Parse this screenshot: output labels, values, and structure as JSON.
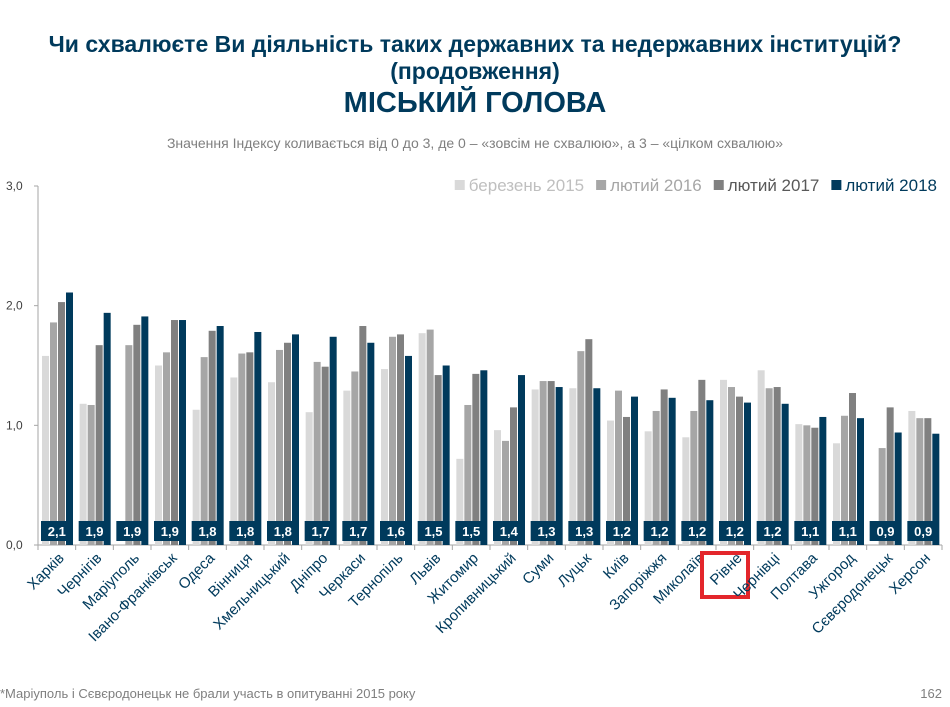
{
  "header": {
    "line1": "Чи схвалюєте Ви діяльність таких державних та недержавних інституцій?",
    "line2": "(продовження)",
    "line3": "МІСЬКИЙ ГОЛОВА",
    "subtitle": "Значення Індексу коливається від 0 до 3, де 0 – «зовсім не схвалюю», а 3 – «цілком схвалюю»"
  },
  "footer": {
    "footnote": "*Маріуполь і Сєвєродонецьк не брали участь в опитуванні 2015 року",
    "page_number": "162"
  },
  "colors": {
    "s2015": "#d9d9d9",
    "s2016": "#a6a6a6",
    "s2017": "#808080",
    "s2018": "#003a5c",
    "highlight": "#e3262b",
    "axis": "#a6a6a6"
  },
  "chart_data": {
    "type": "bar",
    "ylim": [
      0,
      3
    ],
    "y_ticks": [
      "0,0",
      "1,0",
      "2,0",
      "3,0"
    ],
    "legend_position": "top-right",
    "grid": false,
    "highlighted_category": "Рівне",
    "categories": [
      "Харків",
      "Чернігів",
      "Маріуполь",
      "Івано-Франківськ",
      "Одеса",
      "Вінниця",
      "Хмельницький",
      "Дніпро",
      "Черкаси",
      "Тернопіль",
      "Львів",
      "Житомир",
      "Кропивницький",
      "Суми",
      "Луцьк",
      "Київ",
      "Запоріжжя",
      "Миколаїв",
      "Рівне",
      "Чернівці",
      "Полтава",
      "Ужгород",
      "Сєвєродонецьк",
      "Херсон"
    ],
    "value_labels": [
      "2,1",
      "1,9",
      "1,9",
      "1,9",
      "1,8",
      "1,8",
      "1,8",
      "1,7",
      "1,7",
      "1,6",
      "1,5",
      "1,5",
      "1,4",
      "1,3",
      "1,3",
      "1,2",
      "1,2",
      "1,2",
      "1,2",
      "1,2",
      "1,1",
      "1,1",
      "0,9",
      "0,9"
    ],
    "series": [
      {
        "name": "березень 2015",
        "values": [
          1.58,
          1.18,
          null,
          1.5,
          1.13,
          1.4,
          1.36,
          1.11,
          1.29,
          1.47,
          1.77,
          0.72,
          0.96,
          1.3,
          1.31,
          1.04,
          0.95,
          0.9,
          1.38,
          1.46,
          1.01,
          0.85,
          null,
          1.12
        ]
      },
      {
        "name": "лютий 2016",
        "values": [
          1.86,
          1.17,
          1.67,
          1.61,
          1.57,
          1.6,
          1.63,
          1.53,
          1.45,
          1.74,
          1.8,
          1.17,
          0.87,
          1.37,
          1.62,
          1.29,
          1.12,
          1.12,
          1.32,
          1.31,
          1.0,
          1.08,
          0.81,
          1.06
        ]
      },
      {
        "name": "лютий 2017",
        "values": [
          2.03,
          1.67,
          1.84,
          1.88,
          1.79,
          1.61,
          1.69,
          1.49,
          1.83,
          1.76,
          1.42,
          1.43,
          1.15,
          1.37,
          1.72,
          1.07,
          1.3,
          1.38,
          1.24,
          1.32,
          0.98,
          1.27,
          1.15,
          1.06
        ]
      },
      {
        "name": "лютий 2018",
        "values": [
          2.11,
          1.94,
          1.91,
          1.88,
          1.83,
          1.78,
          1.76,
          1.74,
          1.69,
          1.58,
          1.5,
          1.46,
          1.42,
          1.32,
          1.31,
          1.24,
          1.23,
          1.21,
          1.19,
          1.18,
          1.07,
          1.06,
          0.94,
          0.93
        ]
      }
    ]
  }
}
